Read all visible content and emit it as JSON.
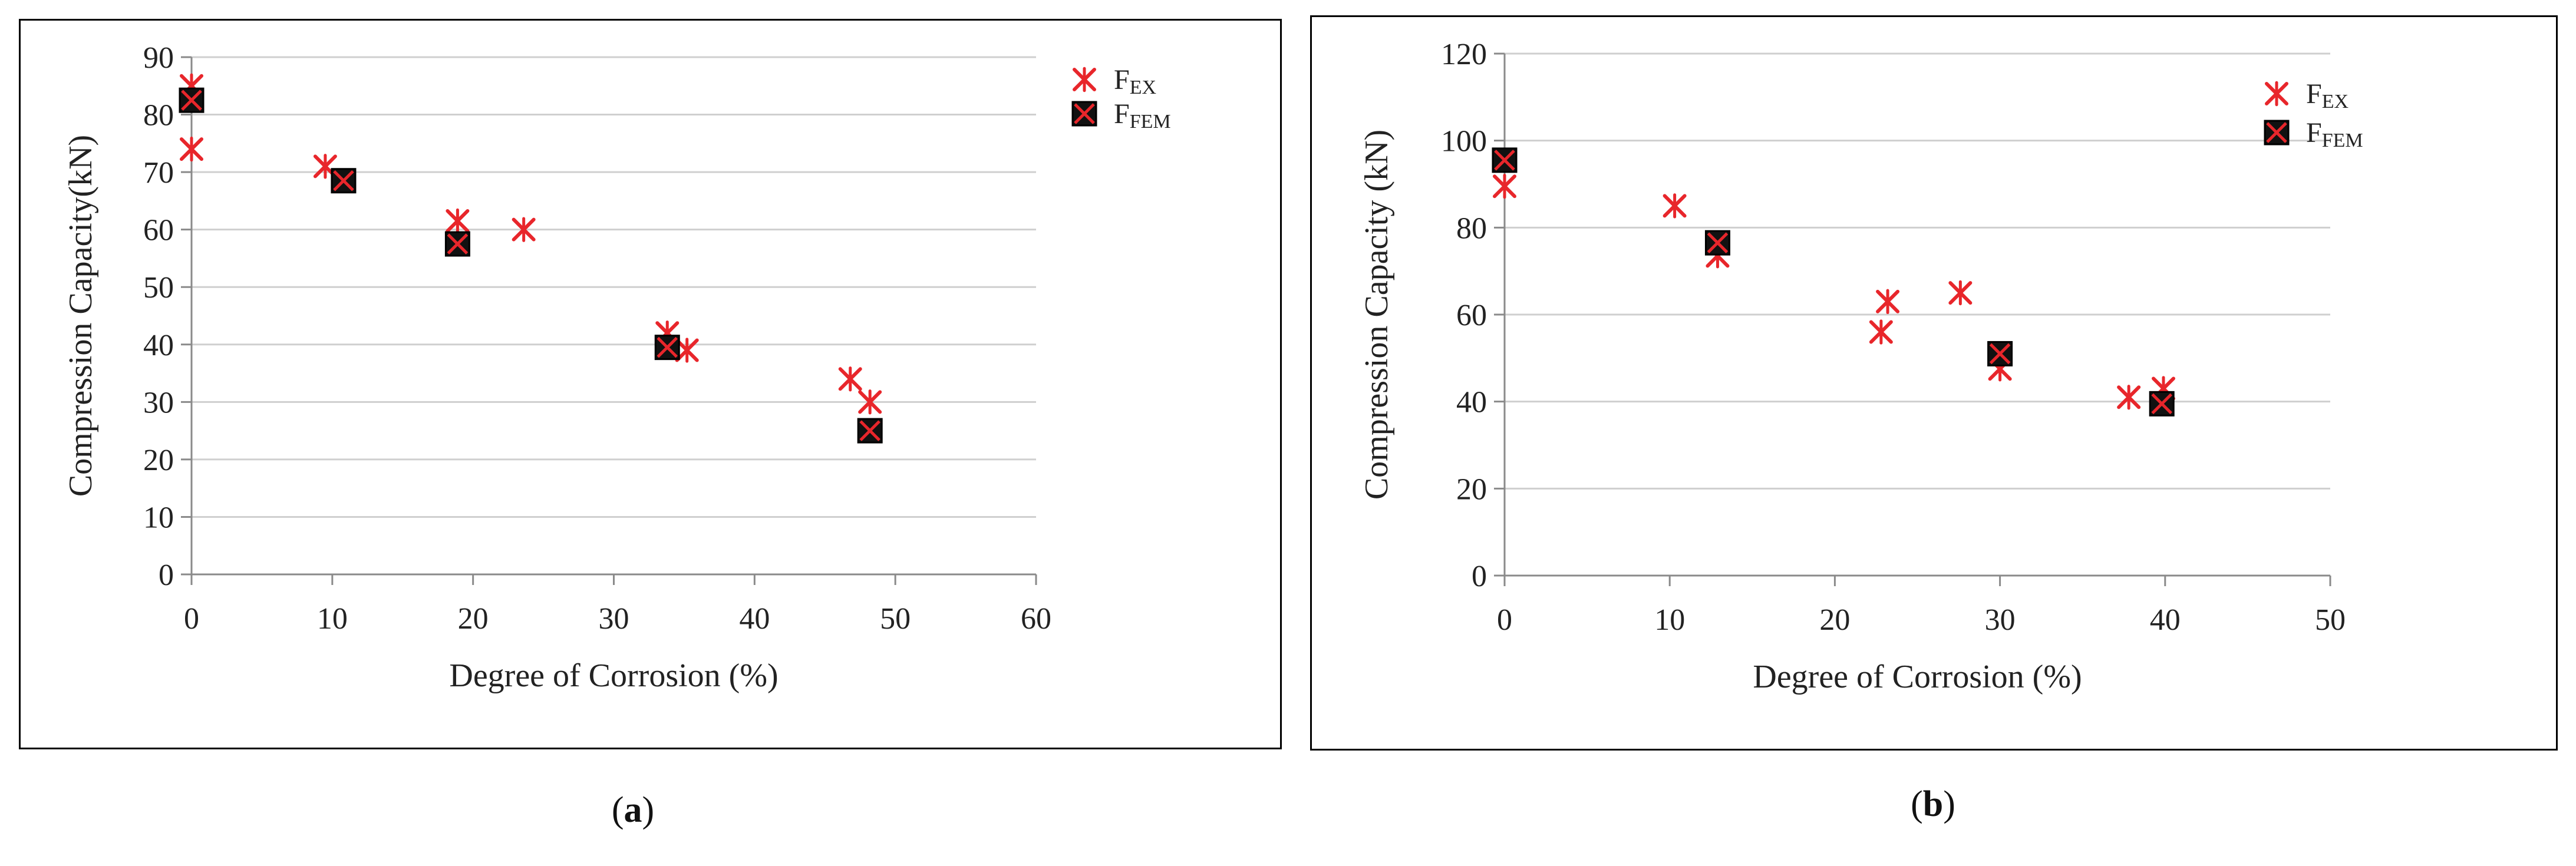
{
  "chart_data": [
    {
      "type": "scatter",
      "panel": "a",
      "xlabel": "Degree of Corrosion (%)",
      "ylabel": "Compression Capacity(kN)",
      "xlim": [
        0,
        60
      ],
      "ylim": [
        0,
        90
      ],
      "xticks": [
        0,
        10,
        20,
        30,
        40,
        50,
        60
      ],
      "yticks": [
        0,
        10,
        20,
        30,
        40,
        50,
        60,
        70,
        80,
        90
      ],
      "grid": "horizontal",
      "legend_position": "top-right",
      "series": [
        {
          "name": "F",
          "name_sub": "EX",
          "color": "#e8262b",
          "marker": "asterisk",
          "x": [
            0,
            0,
            9.5,
            18.9,
            23.6,
            33.8,
            35.2,
            46.8,
            48.2
          ],
          "y": [
            85,
            74,
            71,
            61.5,
            60,
            42,
            39,
            34,
            30
          ]
        },
        {
          "name": "F",
          "name_sub": "FEM",
          "color": "#111111",
          "marker_color": "#e8262b",
          "marker": "boxed-x",
          "x": [
            0,
            10.8,
            18.9,
            33.8,
            48.2
          ],
          "y": [
            82.5,
            68.5,
            57.5,
            39.5,
            25
          ]
        }
      ]
    },
    {
      "type": "scatter",
      "panel": "b",
      "xlabel": "Degree of Corrosion (%)",
      "ylabel": "Compression Capacity (kN)",
      "xlim": [
        0,
        50
      ],
      "ylim": [
        0,
        120
      ],
      "xticks": [
        0,
        10,
        20,
        30,
        40,
        50
      ],
      "yticks": [
        0,
        20,
        40,
        60,
        80,
        100,
        120
      ],
      "grid": "horizontal",
      "legend_position": "top-right",
      "series": [
        {
          "name": "F",
          "name_sub": "EX",
          "color": "#e8262b",
          "marker": "asterisk",
          "x": [
            0,
            10.3,
            12.9,
            22.8,
            23.2,
            27.6,
            30,
            37.8,
            39.9
          ],
          "y": [
            89.5,
            85,
            73.5,
            56,
            63,
            65,
            47.5,
            41,
            43
          ]
        },
        {
          "name": "F",
          "name_sub": "FEM",
          "color": "#111111",
          "marker_color": "#e8262b",
          "marker": "boxed-x",
          "x": [
            0,
            12.9,
            30,
            39.8
          ],
          "y": [
            95.5,
            76.5,
            51,
            39.5
          ]
        }
      ]
    }
  ],
  "captions": {
    "a": {
      "open": "(",
      "letter": "a",
      "close": ")"
    },
    "b": {
      "open": "(",
      "letter": "b",
      "close": ")"
    }
  }
}
